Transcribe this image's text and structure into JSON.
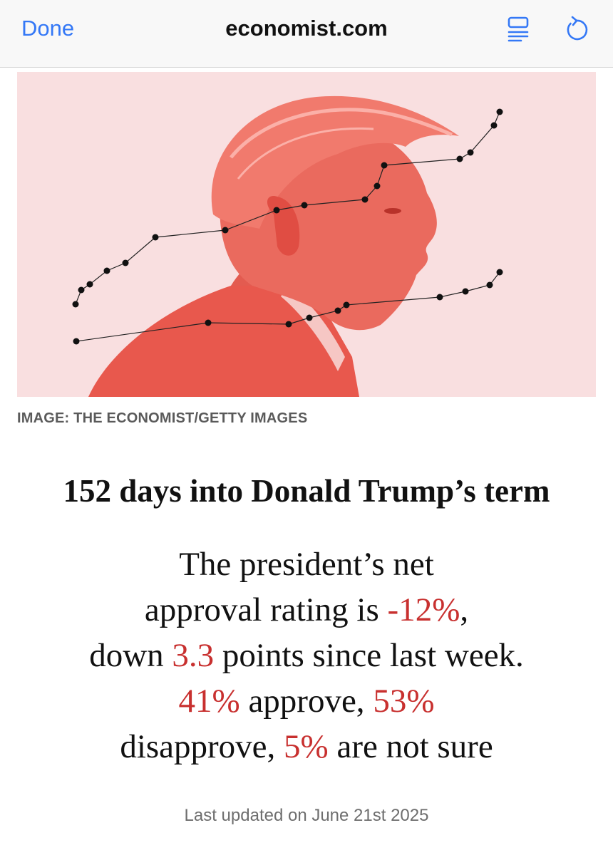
{
  "browser": {
    "done_label": "Done",
    "domain": "economist.com",
    "reader_icon": "reader-view-icon",
    "reload_icon": "reload-icon",
    "accent_color": "#3478f6"
  },
  "hero": {
    "credit": "IMAGE: THE ECONOMIST/GETTY IMAGES",
    "background_color": "#f9dfe0",
    "illustration_color": "#e8584d"
  },
  "article": {
    "headline": "152 days into Donald Trump’s term",
    "summary": {
      "part1": "The president’s net",
      "part2": "approval rating is ",
      "net_approval": "-12%",
      "part3": ",",
      "part4": "down ",
      "weekly_change": "3.3",
      "part5": " points since last week.",
      "approve": "41%",
      "part6": " approve, ",
      "disapprove": "53%",
      "part7": "disapprove, ",
      "not_sure": "5%",
      "part8": " are not sure"
    },
    "highlight_color": "#c8302f",
    "last_updated": "Last updated on June 21st 2025"
  }
}
